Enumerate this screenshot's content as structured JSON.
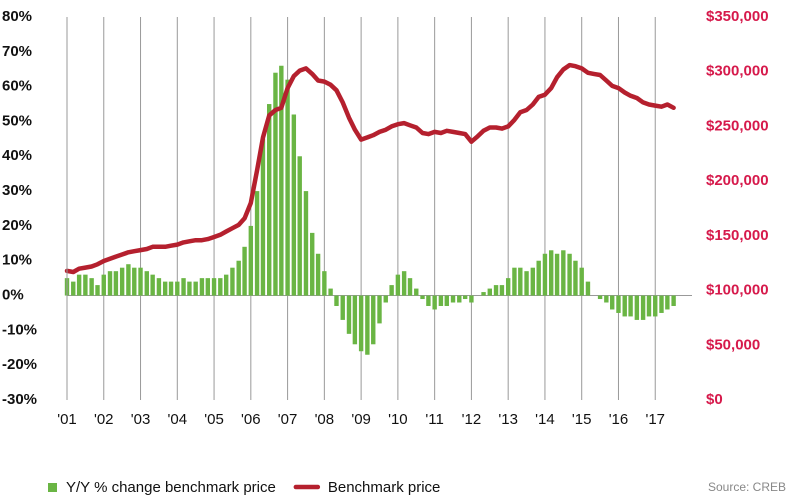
{
  "chart_data": {
    "type": "bar-line",
    "source": "Source: CREB",
    "x": [
      2001,
      2001.17,
      2001.33,
      2001.5,
      2001.67,
      2001.83,
      2002,
      2002.17,
      2002.33,
      2002.5,
      2002.67,
      2002.83,
      2003,
      2003.17,
      2003.33,
      2003.5,
      2003.67,
      2003.83,
      2004,
      2004.17,
      2004.33,
      2004.5,
      2004.67,
      2004.83,
      2005,
      2005.17,
      2005.33,
      2005.5,
      2005.67,
      2005.83,
      2006,
      2006.17,
      2006.33,
      2006.5,
      2006.67,
      2006.83,
      2007,
      2007.17,
      2007.33,
      2007.5,
      2007.67,
      2007.83,
      2008,
      2008.17,
      2008.33,
      2008.5,
      2008.67,
      2008.83,
      2009,
      2009.17,
      2009.33,
      2009.5,
      2009.67,
      2009.83,
      2010,
      2010.17,
      2010.33,
      2010.5,
      2010.67,
      2010.83,
      2011,
      2011.17,
      2011.33,
      2011.5,
      2011.67,
      2011.83,
      2012,
      2012.17,
      2012.33,
      2012.5,
      2012.67,
      2012.83,
      2013,
      2013.17,
      2013.33,
      2013.5,
      2013.67,
      2013.83,
      2014,
      2014.17,
      2014.33,
      2014.5,
      2014.67,
      2014.83,
      2015,
      2015.17,
      2015.33,
      2015.5,
      2015.67,
      2015.83,
      2016,
      2016.17,
      2016.33,
      2016.5,
      2016.67,
      2016.83,
      2017,
      2017.17,
      2017.33,
      2017.5
    ],
    "series": [
      {
        "name": "Y/Y % change benchmark price",
        "kind": "bar",
        "axis": "y",
        "color": "#6ab544",
        "values": [
          5,
          4,
          6,
          6,
          5,
          3,
          6,
          7,
          7,
          8,
          9,
          8,
          8,
          7,
          6,
          5,
          4,
          4,
          4,
          5,
          4,
          4,
          5,
          5,
          5,
          5,
          6,
          8,
          10,
          14,
          20,
          30,
          45,
          55,
          64,
          66,
          62,
          52,
          40,
          30,
          18,
          12,
          7,
          2,
          -3,
          -7,
          -11,
          -14,
          -16,
          -17,
          -14,
          -8,
          -2,
          3,
          6,
          7,
          5,
          2,
          -1,
          -3,
          -4,
          -3,
          -3,
          -2,
          -2,
          -1,
          -2,
          0,
          1,
          2,
          3,
          3,
          5,
          8,
          8,
          7,
          8,
          10,
          12,
          13,
          12,
          13,
          12,
          10,
          8,
          4,
          0,
          -1,
          -2,
          -4,
          -5,
          -6,
          -6,
          -7,
          -7,
          -6,
          -6,
          -5,
          -4,
          -3
        ]
      },
      {
        "name": "Benchmark price",
        "kind": "line",
        "axis": "y2",
        "color": "#b5202e",
        "values": [
          118000,
          117000,
          120000,
          121000,
          122000,
          124000,
          127000,
          129000,
          131000,
          133000,
          135000,
          136000,
          137000,
          138000,
          140000,
          140000,
          140000,
          141000,
          142000,
          144000,
          145000,
          146000,
          146000,
          147000,
          149000,
          151000,
          154000,
          157000,
          160000,
          166000,
          180000,
          210000,
          240000,
          260000,
          265000,
          267000,
          285000,
          296000,
          301000,
          303000,
          298000,
          292000,
          291000,
          288000,
          283000,
          272000,
          258000,
          247000,
          238000,
          240000,
          242000,
          245000,
          247000,
          250000,
          252000,
          253000,
          251000,
          249000,
          244000,
          243000,
          245000,
          244000,
          246000,
          245000,
          244000,
          243000,
          236000,
          241000,
          246000,
          249000,
          249000,
          248000,
          250000,
          256000,
          263000,
          265000,
          270000,
          277000,
          279000,
          285000,
          295000,
          302000,
          306000,
          305000,
          303000,
          299000,
          298000,
          297000,
          292000,
          287000,
          285000,
          281000,
          278000,
          276000,
          272000,
          270000,
          269000,
          268000,
          270000,
          267000
        ]
      }
    ],
    "xlim": [
      2001,
      2018
    ],
    "xticks": [
      {
        "value": 2001,
        "label": "'01"
      },
      {
        "value": 2002,
        "label": "'02"
      },
      {
        "value": 2003,
        "label": "'03"
      },
      {
        "value": 2004,
        "label": "'04"
      },
      {
        "value": 2005,
        "label": "'05"
      },
      {
        "value": 2006,
        "label": "'06"
      },
      {
        "value": 2007,
        "label": "'07"
      },
      {
        "value": 2008,
        "label": "'08"
      },
      {
        "value": 2009,
        "label": "'09"
      },
      {
        "value": 2010,
        "label": "'10"
      },
      {
        "value": 2011,
        "label": "'11"
      },
      {
        "value": 2012,
        "label": "'12"
      },
      {
        "value": 2013,
        "label": "'13"
      },
      {
        "value": 2014,
        "label": "'14"
      },
      {
        "value": 2015,
        "label": "'15"
      },
      {
        "value": 2016,
        "label": "'16"
      },
      {
        "value": 2017,
        "label": "'17"
      }
    ],
    "ylim": [
      -30,
      80
    ],
    "yticks": [
      {
        "value": 80,
        "label": "80%"
      },
      {
        "value": 70,
        "label": "70%"
      },
      {
        "value": 60,
        "label": "60%"
      },
      {
        "value": 50,
        "label": "50%"
      },
      {
        "value": 40,
        "label": "40%"
      },
      {
        "value": 30,
        "label": "30%"
      },
      {
        "value": 20,
        "label": "20%"
      },
      {
        "value": 10,
        "label": "10%"
      },
      {
        "value": 0,
        "label": "0%"
      },
      {
        "value": -10,
        "label": "-10%"
      },
      {
        "value": -20,
        "label": "-20%"
      },
      {
        "value": -30,
        "label": "-30%"
      }
    ],
    "y2lim": [
      0,
      350000
    ],
    "y2ticks": [
      {
        "value": 350000,
        "label": "$350,000"
      },
      {
        "value": 300000,
        "label": "$300,000"
      },
      {
        "value": 250000,
        "label": "$250,000"
      },
      {
        "value": 200000,
        "label": "$200,000"
      },
      {
        "value": 150000,
        "label": "$150,000"
      },
      {
        "value": 100000,
        "label": "$100,000"
      },
      {
        "value": 50000,
        "label": "$50,000"
      },
      {
        "value": 0,
        "label": "$0"
      }
    ],
    "y2color": "#d6194b"
  }
}
